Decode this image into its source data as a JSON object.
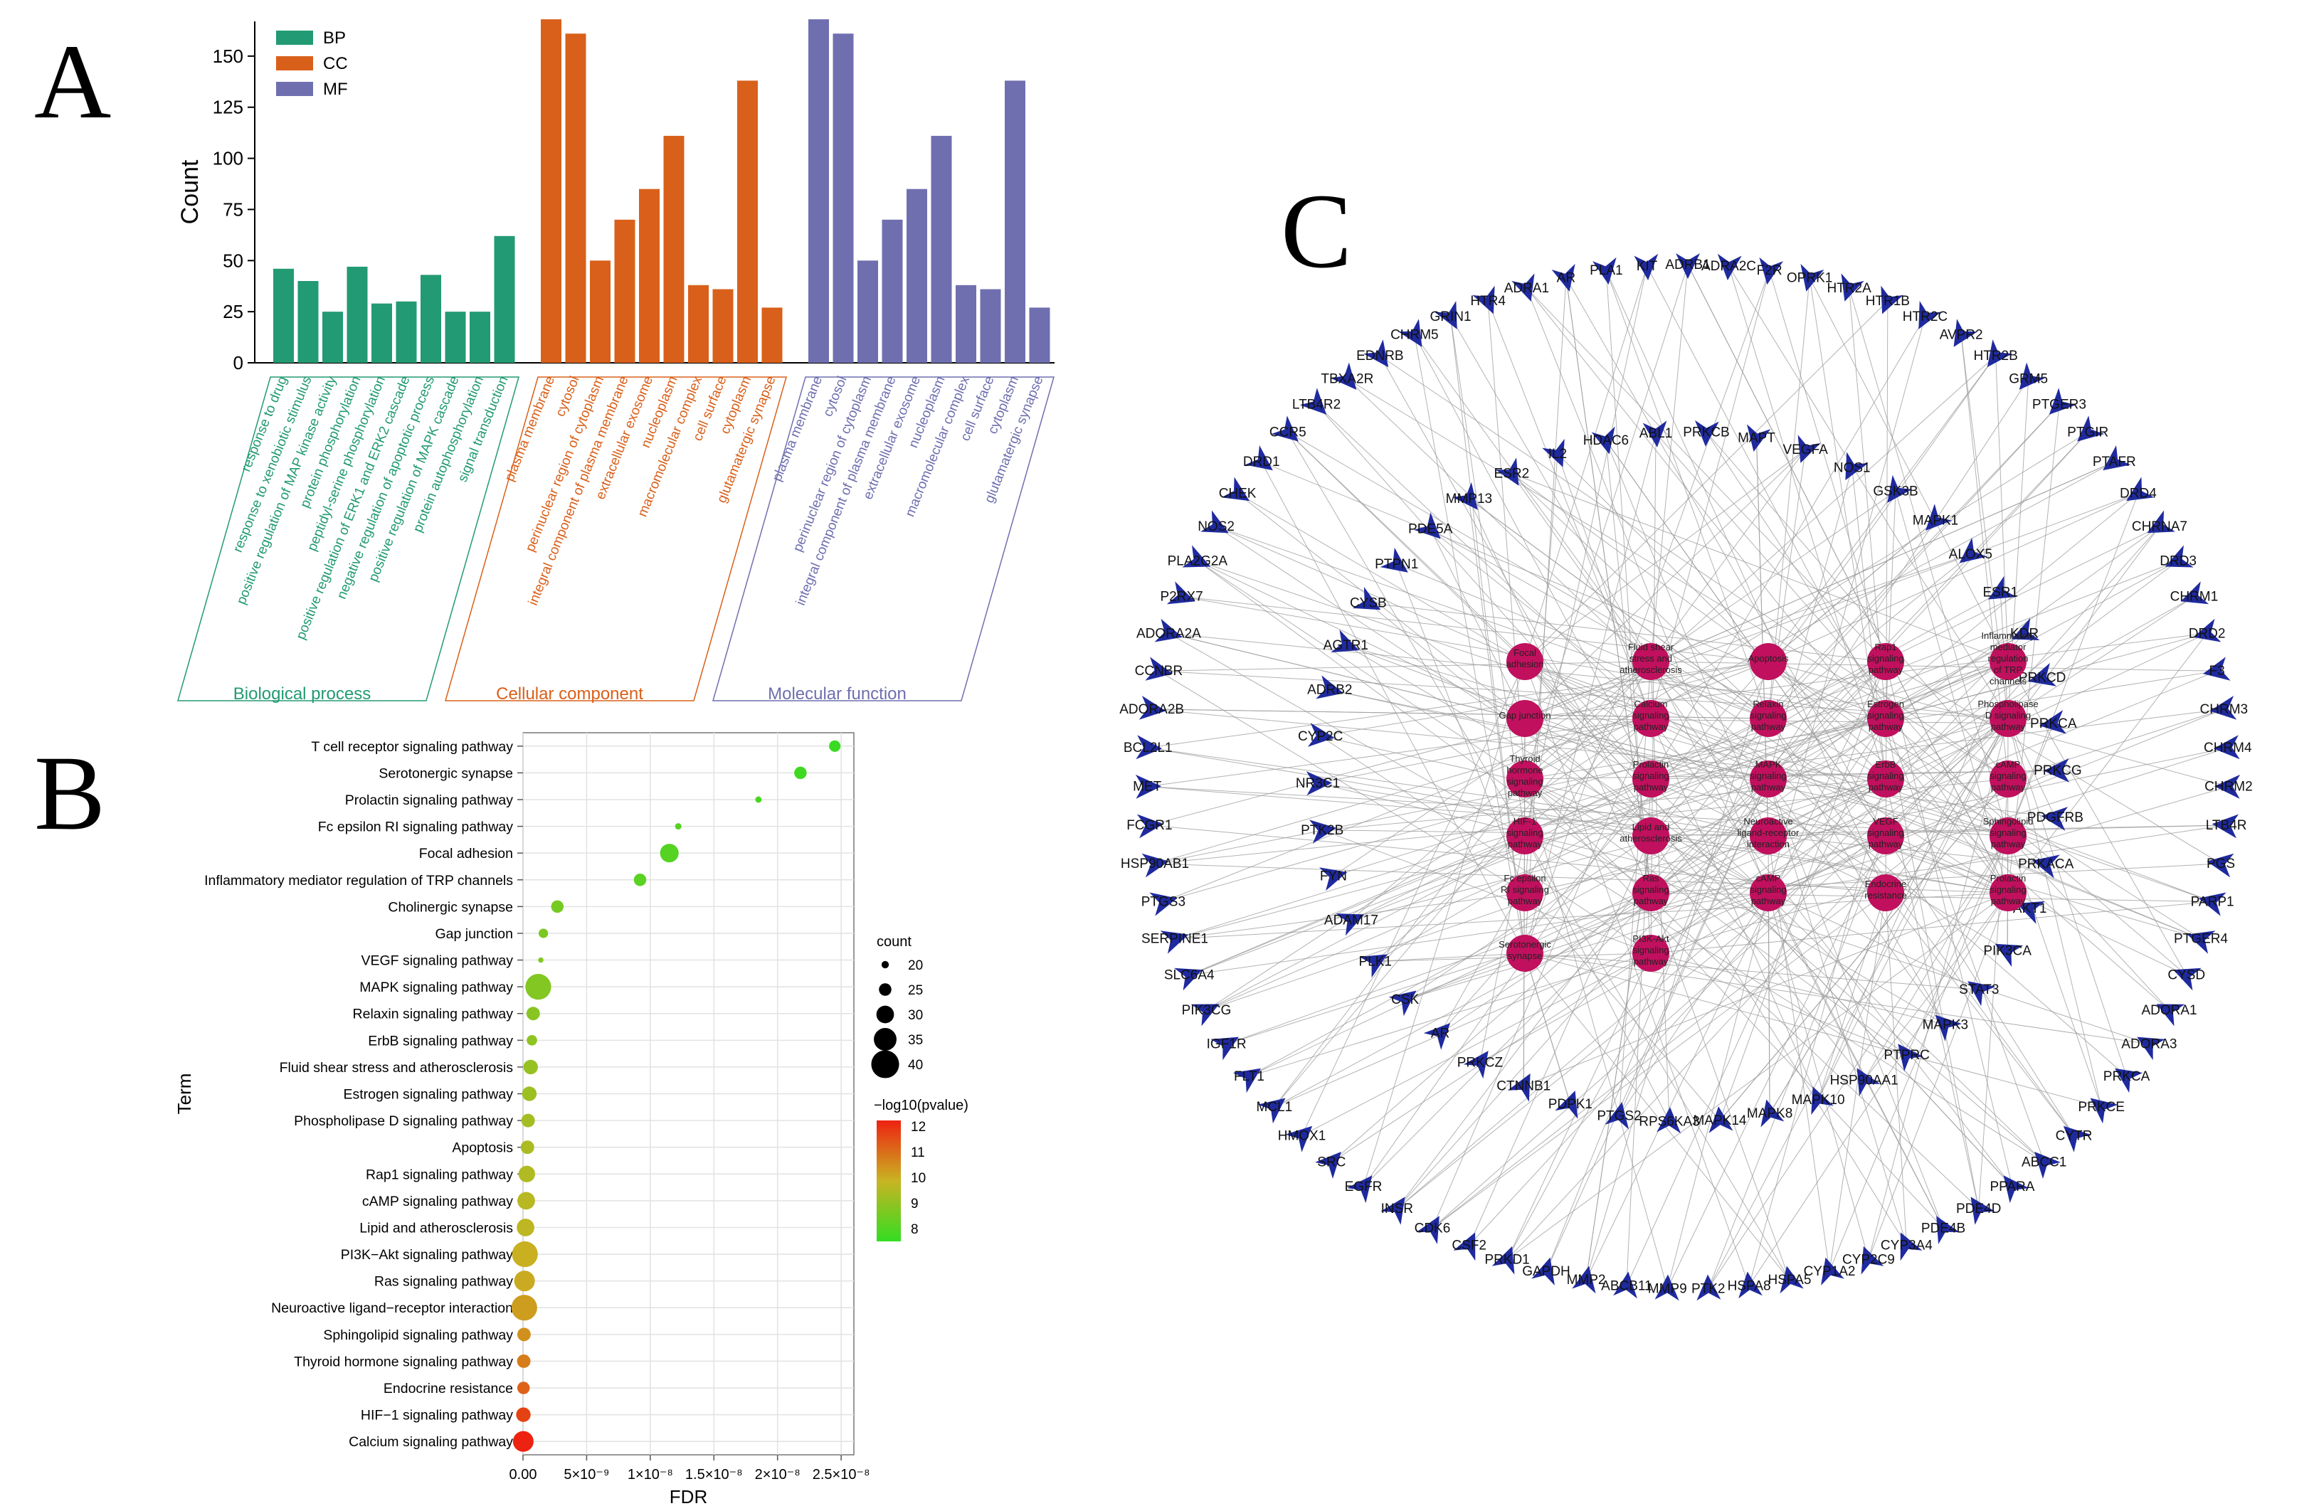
{
  "panels": {
    "a": "A",
    "b": "B",
    "c": "C"
  },
  "colors": {
    "bp": "#229a73",
    "cc": "#d9601a",
    "mf": "#6f6fb0",
    "node_hub": "#c0105e",
    "node_gene": "#1f2a9e",
    "edge": "#9a9a9a"
  },
  "chart_data": [
    {
      "id": "go",
      "type": "bar",
      "title": "",
      "xlabel": "",
      "ylabel": "Count",
      "ylim": [
        0,
        167
      ],
      "yticks": [
        "0",
        "25",
        "50",
        "75",
        "100",
        "125",
        "150"
      ],
      "legend": [
        "BP",
        "CC",
        "MF"
      ],
      "groups": [
        "Biological process",
        "Cellular component",
        "Molecular function"
      ],
      "series": [
        {
          "name": "BP",
          "categories": [
            "response to drug",
            "response to xenobiotic stimulus",
            "positive regulation of MAP kinase activity",
            "protein phosphorylation",
            "peptidyl-serine phosphorylation",
            "positive regulation of ERK1 and ERK2 cascade",
            "negative regulation of apoptotic process",
            "positive regulation of MAPK cascade",
            "protein autophosphorylation",
            "signal transduction"
          ],
          "values": [
            46,
            40,
            25,
            47,
            29,
            30,
            43,
            25,
            25,
            62
          ]
        },
        {
          "name": "CC",
          "categories": [
            "plasma membrane",
            "cytosol",
            "perinuclear region of cytoplasm",
            "integral component of plasma membrane",
            "extracellular exosome",
            "nucleoplasm",
            "macromolecular complex",
            "cell surface",
            "cytoplasm",
            "glutamatergic synapse"
          ],
          "values": [
            168,
            161,
            50,
            70,
            85,
            111,
            38,
            36,
            138,
            27
          ]
        },
        {
          "name": "MF",
          "categories": [
            "plasma membrane",
            "cytosol",
            "perinuclear region of cytoplasm",
            "integral component of plasma membrane",
            "extracellular exosome",
            "nucleoplasm",
            "macromolecular complex",
            "cell surface",
            "cytoplasm",
            "glutamatergic synapse"
          ],
          "values": [
            168,
            161,
            50,
            70,
            85,
            111,
            38,
            36,
            138,
            27
          ]
        }
      ]
    },
    {
      "id": "kegg",
      "type": "scatter",
      "xlabel": "FDR",
      "ylabel": "Term",
      "xlim": [
        0,
        2.6e-08
      ],
      "xticks": [
        "0.00",
        "5×10⁻⁹",
        "1×10⁻⁸",
        "1.5×10⁻⁸",
        "2×10⁻⁸",
        "2.5×10⁻⁸"
      ],
      "size_legend_title": "count",
      "size_legend": [
        "20",
        "25",
        "30",
        "35",
        "40"
      ],
      "color_legend_title": "−log10(pvalue)",
      "color_legend": [
        "12",
        "11",
        "10",
        "9",
        "8"
      ],
      "points": [
        {
          "term": "T cell receptor signaling pathway",
          "fdr": 2.45e-08,
          "count": 24,
          "neglogp": 7.6
        },
        {
          "term": "Serotonergic synapse",
          "fdr": 2.18e-08,
          "count": 25,
          "neglogp": 7.7
        },
        {
          "term": "Prolactin signaling pathway",
          "fdr": 1.85e-08,
          "count": 19,
          "neglogp": 7.8
        },
        {
          "term": "Fc epsilon RI signaling pathway",
          "fdr": 1.22e-08,
          "count": 19,
          "neglogp": 8.0
        },
        {
          "term": "Focal adhesion",
          "fdr": 1.15e-08,
          "count": 31,
          "neglogp": 8.0
        },
        {
          "term": "Inflammatory mediator regulation of TRP channels",
          "fdr": 9.2e-09,
          "count": 25,
          "neglogp": 8.1
        },
        {
          "term": "Cholinergic synapse",
          "fdr": 2.7e-09,
          "count": 25,
          "neglogp": 8.5
        },
        {
          "term": "Gap junction",
          "fdr": 1.6e-09,
          "count": 22,
          "neglogp": 8.6
        },
        {
          "term": "VEGF signaling pathway",
          "fdr": 1.4e-09,
          "count": 18,
          "neglogp": 8.7
        },
        {
          "term": "MAPK signaling pathway",
          "fdr": 1.2e-09,
          "count": 38,
          "neglogp": 8.7
        },
        {
          "term": "Relaxin signaling pathway",
          "fdr": 8e-10,
          "count": 26,
          "neglogp": 8.8
        },
        {
          "term": "ErbB signaling pathway",
          "fdr": 7e-10,
          "count": 23,
          "neglogp": 8.9
        },
        {
          "term": "Fluid shear stress and atherosclerosis",
          "fdr": 6e-10,
          "count": 27,
          "neglogp": 9.0
        },
        {
          "term": "Estrogen signaling pathway",
          "fdr": 5e-10,
          "count": 27,
          "neglogp": 9.1
        },
        {
          "term": "Phospholipase D signaling pathway",
          "fdr": 4e-10,
          "count": 26,
          "neglogp": 9.2
        },
        {
          "term": "Apoptosis",
          "fdr": 3.5e-10,
          "count": 26,
          "neglogp": 9.3
        },
        {
          "term": "Rap1 signaling pathway",
          "fdr": 3e-10,
          "count": 29,
          "neglogp": 9.4
        },
        {
          "term": "cAMP signaling pathway",
          "fdr": 2.5e-10,
          "count": 30,
          "neglogp": 9.5
        },
        {
          "term": "Lipid and atherosclerosis",
          "fdr": 2e-10,
          "count": 30,
          "neglogp": 9.6
        },
        {
          "term": "PI3K−Akt signaling pathway",
          "fdr": 1.5e-10,
          "count": 38,
          "neglogp": 9.8
        },
        {
          "term": "Ras signaling pathway",
          "fdr": 1.2e-10,
          "count": 33,
          "neglogp": 9.9
        },
        {
          "term": "Neuroactive ligand−receptor interaction",
          "fdr": 1e-10,
          "count": 38,
          "neglogp": 10.1
        },
        {
          "term": "Sphingolipid signaling pathway",
          "fdr": 8e-11,
          "count": 26,
          "neglogp": 10.3
        },
        {
          "term": "Thyroid hormone signaling pathway",
          "fdr": 6e-11,
          "count": 26,
          "neglogp": 10.6
        },
        {
          "term": "Endocrine resistance",
          "fdr": 4e-11,
          "count": 25,
          "neglogp": 11.0
        },
        {
          "term": "HIF−1 signaling pathway",
          "fdr": 3e-11,
          "count": 27,
          "neglogp": 11.5
        },
        {
          "term": "Calcium signaling pathway",
          "fdr": 2e-11,
          "count": 33,
          "neglogp": 12.0
        }
      ]
    },
    {
      "id": "network",
      "type": "network",
      "hubs": [
        "Focal adhesion",
        "Fluid shear stress and atherosclerosis",
        "Apoptosis",
        "Rap1 signaling pathway",
        "Inflammatory mediator regulation of TRP channels",
        "Gap junction",
        "Calcium signaling pathway",
        "Relaxin signaling pathway",
        "Estrogen signaling pathway",
        "Phospholipase D signaling pathway",
        "Thyroid hormone signaling pathway",
        "Prolactin signaling pathway",
        "MAPK signaling pathway",
        "ErbB signaling pathway",
        "cAMP signaling pathway",
        "HIF-1 signaling pathway",
        "Lipid and atherosclerosis",
        "Neuroactive ligand-receptor interaction",
        "VEGF signaling pathway",
        "Sphingolipid signaling pathway",
        "Fc epsilon RI signaling pathway",
        "Ras signaling pathway",
        "cAMP signaling pathway",
        "Endocrine resistance",
        "Prolactin signaling pathway",
        "Serotonergic synapse",
        "PI3K-Akt signaling pathway"
      ],
      "outer_genes": [
        "ADRB1",
        "ADRA2C",
        "F2R",
        "OPRK1",
        "HTR2A",
        "HTR1B",
        "HTR2C",
        "AVPR2",
        "HTR2B",
        "GRM5",
        "PTGER3",
        "PTGIR",
        "PTAFR",
        "DRD4",
        "CHRNA7",
        "DRD3",
        "CHRM1",
        "DRD2",
        "F3",
        "CHRM3",
        "CHRM4",
        "CHRM2",
        "LTB4R",
        "PGS",
        "PARP1",
        "PTGER4",
        "CYSD",
        "ADORA1",
        "ADORA3",
        "PRKCA",
        "PRKCE",
        "CYTR",
        "ABCC1",
        "PPARA",
        "PDE4D",
        "PDE4B",
        "CYP3A4",
        "CYP2C9",
        "CYP1A2",
        "HSPA5",
        "HSPA8",
        "PTK2",
        "MMP9",
        "ABCB11",
        "MMP2",
        "GAPDH",
        "PRKD1",
        "CSF2",
        "CDK6",
        "INSR",
        "EGFR",
        "SRC",
        "HMOX1",
        "MCL1",
        "FLT1",
        "IGF1R",
        "PIK3CG",
        "SLC6A4",
        "SERPINE1",
        "PTGS3",
        "HSP90AB1",
        "FCGR1",
        "MET",
        "BCL2L1",
        "ADORA2B",
        "CCNBR",
        "ADORA2A",
        "P2RX7",
        "PLA2G2A",
        "NOS2",
        "CHEK",
        "DRD1",
        "CCR5",
        "LTB4R2",
        "TBXA2R",
        "EDNRB",
        "CHRM5",
        "GRIN1",
        "HTR4",
        "ADRA1",
        "AR",
        "PLA1",
        "KIT"
      ],
      "inner_genes": [
        "PRKCB",
        "MAPT",
        "VEGFA",
        "NOS1",
        "GSK3B",
        "MAPK1",
        "ALOX5",
        "ESR1",
        "KDR",
        "PRKCD",
        "PRKCA",
        "PRKCG",
        "PDGFRB",
        "PRKACA",
        "AKT1",
        "PIK3CA",
        "STAT3",
        "MAPK3",
        "PTPRC",
        "HSP90AA1",
        "MAPK10",
        "MAPK8",
        "MAPK14",
        "RPS6KA3",
        "PTGS2",
        "PDPK1",
        "CTNNB1",
        "PRKCZ",
        "AR",
        "CSK",
        "PLK1",
        "ADAM17",
        "FYN",
        "PTK2B",
        "NR3C1",
        "CYP2C",
        "ADRB2",
        "AGTR1",
        "CYSB",
        "PTPN1",
        "PDE5A",
        "MMP13",
        "ESR2",
        "IL2",
        "HDAC6",
        "ABL1"
      ]
    }
  ]
}
